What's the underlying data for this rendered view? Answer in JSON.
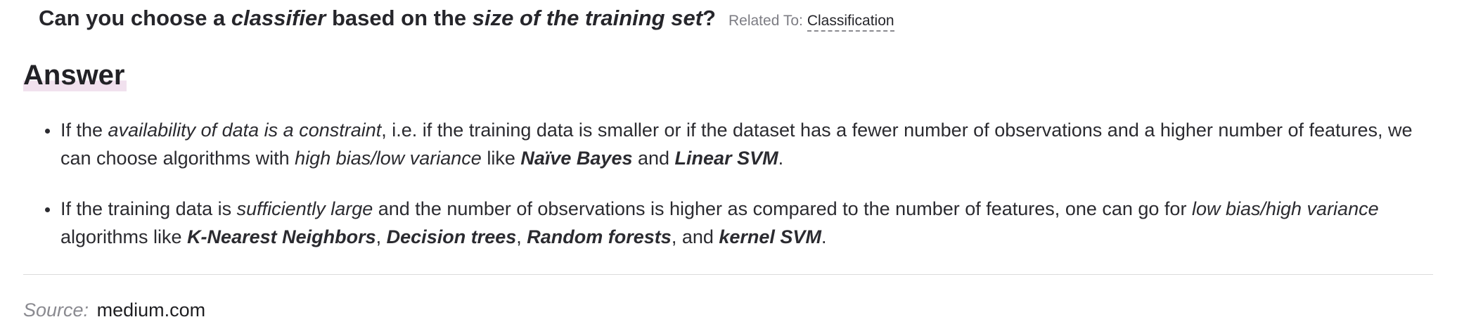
{
  "question": {
    "part1": "Can you choose a ",
    "em1": "classifier",
    "part2": " based on the ",
    "em2": "size of the training set",
    "part3": "?",
    "related_label": "Related To:",
    "related_link": "Classification"
  },
  "answer": {
    "heading": "Answer",
    "items": [
      {
        "t1": "If the ",
        "e1": "availability of data is a constraint",
        "t2": ", i.e. if the training data is smaller or if the dataset has a fewer number of observations and a higher number of features, we can choose algorithms with ",
        "e2": "high bias/low variance",
        "t3": " like ",
        "b1": "Naïve Bayes",
        "t4": " and ",
        "b2": "Linear SVM",
        "t5": "."
      },
      {
        "t1": "If the training data is ",
        "e1": "sufficiently large",
        "t2": " and the number of observations is higher as compared to the number of features, one can go for ",
        "e2": "low bias/high variance",
        "t3": " algorithms like ",
        "b1": "K-Nearest Neighbors",
        "t4": ", ",
        "b2": "Decision trees",
        "t5": ", ",
        "b3": "Random forests",
        "t6": ", and ",
        "b4": "kernel SVM",
        "t7": "."
      }
    ]
  },
  "source": {
    "label": "Source:",
    "link": "medium.com"
  }
}
